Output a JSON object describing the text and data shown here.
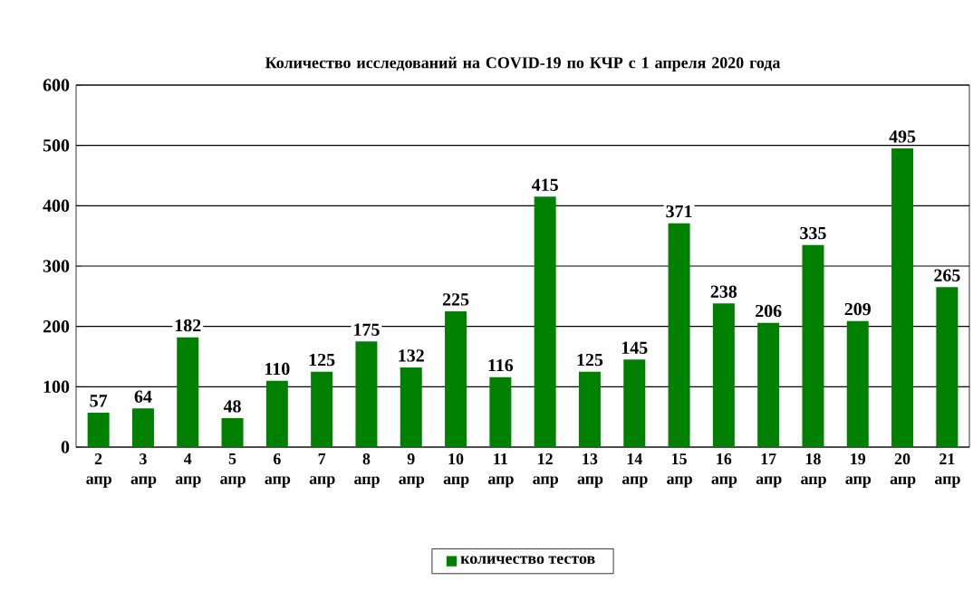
{
  "chart_data": {
    "type": "bar",
    "title": "Количество  исследований на COVID-19 по КЧР с 1 апреля 2020 года",
    "categories": [
      "2 апр",
      "3 апр",
      "4 апр",
      "5 апр",
      "6 апр",
      "7 апр",
      "8 апр",
      "9 апр",
      "10 апр",
      "11 апр",
      "12 апр",
      "13 апр",
      "14 апр",
      "15 апр",
      "16 апр",
      "17 апр",
      "18 апр",
      "19 апр",
      "20 апр",
      "21 апр"
    ],
    "series": [
      {
        "name": "количество тестов",
        "color": "#008000",
        "values": [
          57,
          64,
          182,
          48,
          110,
          125,
          175,
          132,
          225,
          116,
          415,
          125,
          145,
          371,
          238,
          206,
          335,
          209,
          495,
          265
        ]
      }
    ],
    "ylim": [
      0,
      600
    ],
    "yticks": [
      0,
      100,
      200,
      300,
      400,
      500,
      600
    ],
    "grid": "y",
    "legend": "bottom",
    "data_labels": true
  }
}
